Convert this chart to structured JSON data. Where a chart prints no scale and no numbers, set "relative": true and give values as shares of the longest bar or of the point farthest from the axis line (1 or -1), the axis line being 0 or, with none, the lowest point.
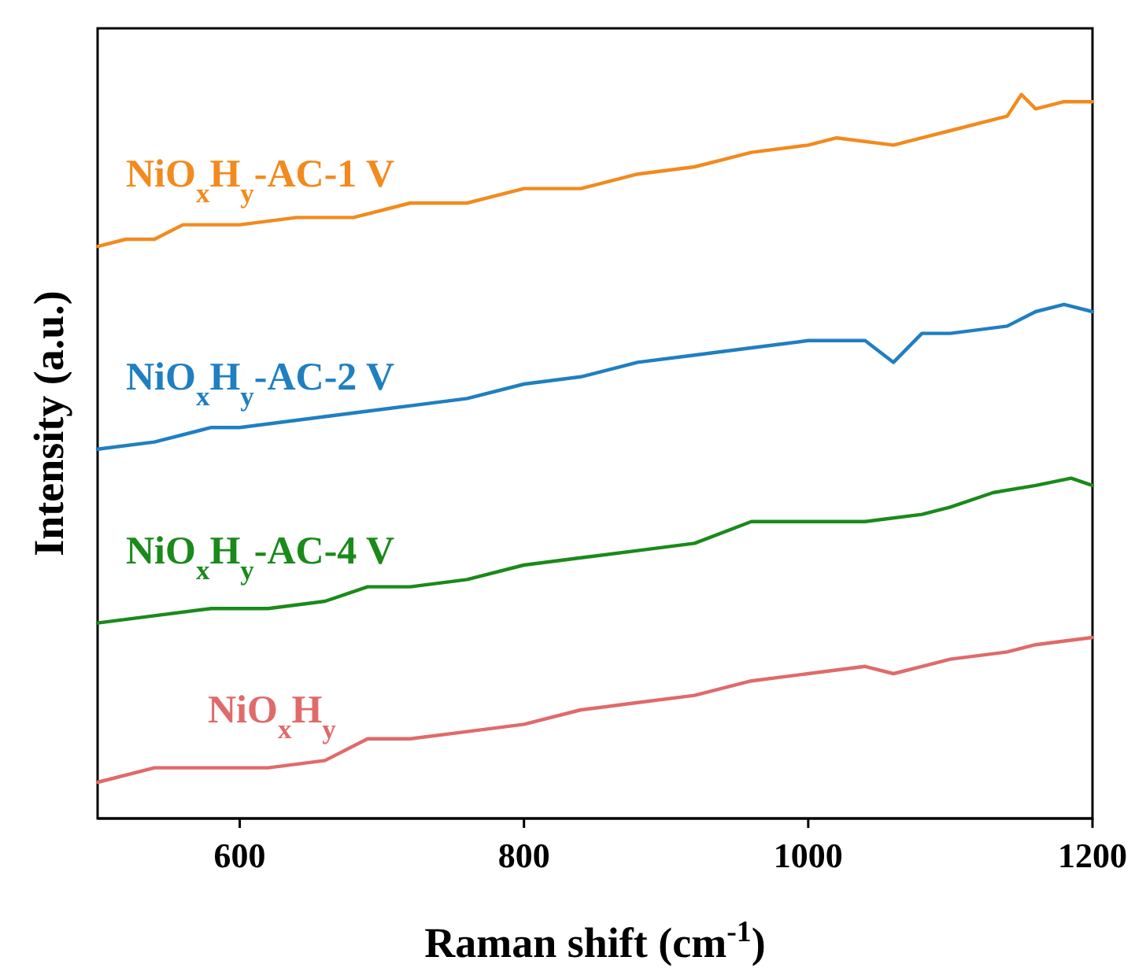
{
  "chart_data": {
    "type": "line",
    "relative": true,
    "xlabel": "Raman shift (cm$^{-1}$)",
    "ylabel": "Intensity (a.u.)",
    "xlim": [
      500,
      1200
    ],
    "xticks": [
      600,
      800,
      1000,
      1200
    ],
    "grid": false,
    "line_style": "solid",
    "marker": "none",
    "tick_labels": "x",
    "series": [
      {
        "name": "NiO$_{x}$H$_{y}$-AC-1 V",
        "color": "#f28a1e",
        "x": [
          500,
          520,
          540,
          560,
          600,
          640,
          680,
          720,
          760,
          800,
          840,
          880,
          920,
          940,
          960,
          1000,
          1020,
          1060,
          1080,
          1100,
          1140,
          1150,
          1160,
          1180,
          1200
        ],
        "values": [
          0.79,
          0.8,
          0.8,
          0.82,
          0.82,
          0.83,
          0.83,
          0.85,
          0.85,
          0.87,
          0.87,
          0.89,
          0.9,
          0.91,
          0.92,
          0.93,
          0.94,
          0.93,
          0.94,
          0.95,
          0.97,
          1.0,
          0.98,
          0.99,
          0.99
        ]
      },
      {
        "name": "NiO$_{x}$H$_{y}$-AC-2 V",
        "color": "#1f7fc1",
        "x": [
          500,
          540,
          580,
          600,
          640,
          680,
          720,
          760,
          800,
          840,
          880,
          920,
          960,
          1000,
          1040,
          1060,
          1080,
          1100,
          1140,
          1160,
          1180,
          1200
        ],
        "values": [
          0.51,
          0.52,
          0.54,
          0.54,
          0.55,
          0.56,
          0.57,
          0.58,
          0.6,
          0.61,
          0.63,
          0.64,
          0.65,
          0.66,
          0.66,
          0.63,
          0.67,
          0.67,
          0.68,
          0.7,
          0.71,
          0.7
        ]
      },
      {
        "name": "NiO$_{x}$H$_{y}$-AC-4 V",
        "color": "#1a8a1a",
        "x": [
          500,
          540,
          580,
          620,
          660,
          690,
          720,
          760,
          800,
          840,
          880,
          920,
          960,
          1000,
          1040,
          1080,
          1100,
          1130,
          1160,
          1185,
          1200
        ],
        "values": [
          0.27,
          0.28,
          0.29,
          0.29,
          0.3,
          0.32,
          0.32,
          0.33,
          0.35,
          0.36,
          0.37,
          0.38,
          0.41,
          0.41,
          0.41,
          0.42,
          0.43,
          0.45,
          0.46,
          0.47,
          0.46
        ]
      },
      {
        "name": "NiO$_{x}$H$_{y}$",
        "color": "#e06a6a",
        "x": [
          500,
          540,
          580,
          620,
          660,
          690,
          720,
          760,
          800,
          840,
          880,
          920,
          960,
          1000,
          1040,
          1060,
          1080,
          1100,
          1140,
          1160,
          1200
        ],
        "values": [
          0.05,
          0.07,
          0.07,
          0.07,
          0.08,
          0.11,
          0.11,
          0.12,
          0.13,
          0.15,
          0.16,
          0.17,
          0.19,
          0.2,
          0.21,
          0.2,
          0.21,
          0.22,
          0.23,
          0.24,
          0.25
        ]
      }
    ]
  }
}
